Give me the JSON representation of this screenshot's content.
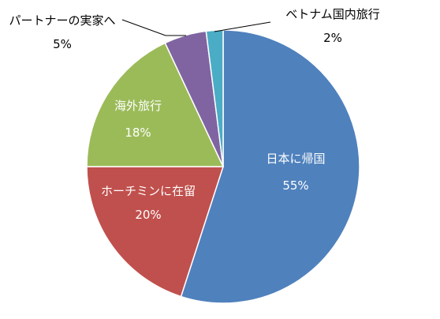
{
  "chart_data": {
    "type": "pie",
    "title": "",
    "start_angle_deg": 0,
    "direction": "clockwise",
    "slices": [
      {
        "label": "日本に帰国",
        "value": 55,
        "pct_text": "55%",
        "color": "#4f81bd"
      },
      {
        "label": "ホーチミンに在留",
        "value": 20,
        "pct_text": "20%",
        "color": "#c0504d"
      },
      {
        "label": "海外旅行",
        "value": 18,
        "pct_text": "18%",
        "color": "#9bbb59"
      },
      {
        "label": "パートナーの実家へ",
        "value": 5,
        "pct_text": "5%",
        "color": "#8064a2"
      },
      {
        "label": "ベトナム国内旅行",
        "value": 2,
        "pct_text": "2%",
        "color": "#4bacc6"
      }
    ],
    "legend": "none",
    "data_labels": "category name and percentage"
  }
}
